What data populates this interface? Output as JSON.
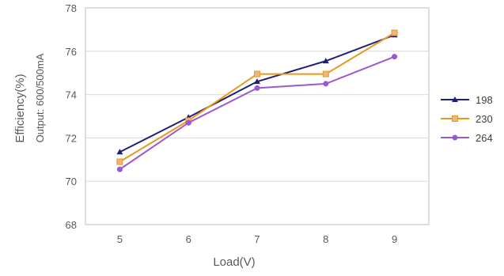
{
  "chart_data": {
    "type": "line",
    "title": "",
    "xlabel": "Load(V)",
    "ylabel": "Efficiency(%)",
    "ylabel_secondary": "Output: 600/500mA",
    "categories": [
      5,
      6,
      7,
      8,
      9
    ],
    "ylim": [
      68,
      78
    ],
    "yticks": [
      68,
      70,
      72,
      74,
      76,
      78
    ],
    "grid": true,
    "legend": "right",
    "series": [
      {
        "name": "198",
        "values": [
          71.35,
          72.95,
          74.6,
          75.55,
          76.75
        ],
        "color": "#1f1f7a",
        "marker": "triangle"
      },
      {
        "name": "230",
        "values": [
          70.9,
          72.8,
          74.95,
          74.95,
          76.85
        ],
        "color": "#e69a1e",
        "marker": "square"
      },
      {
        "name": "264",
        "values": [
          70.55,
          72.7,
          74.3,
          74.5,
          75.75
        ],
        "color": "#9b59d0",
        "marker": "circle"
      }
    ]
  }
}
